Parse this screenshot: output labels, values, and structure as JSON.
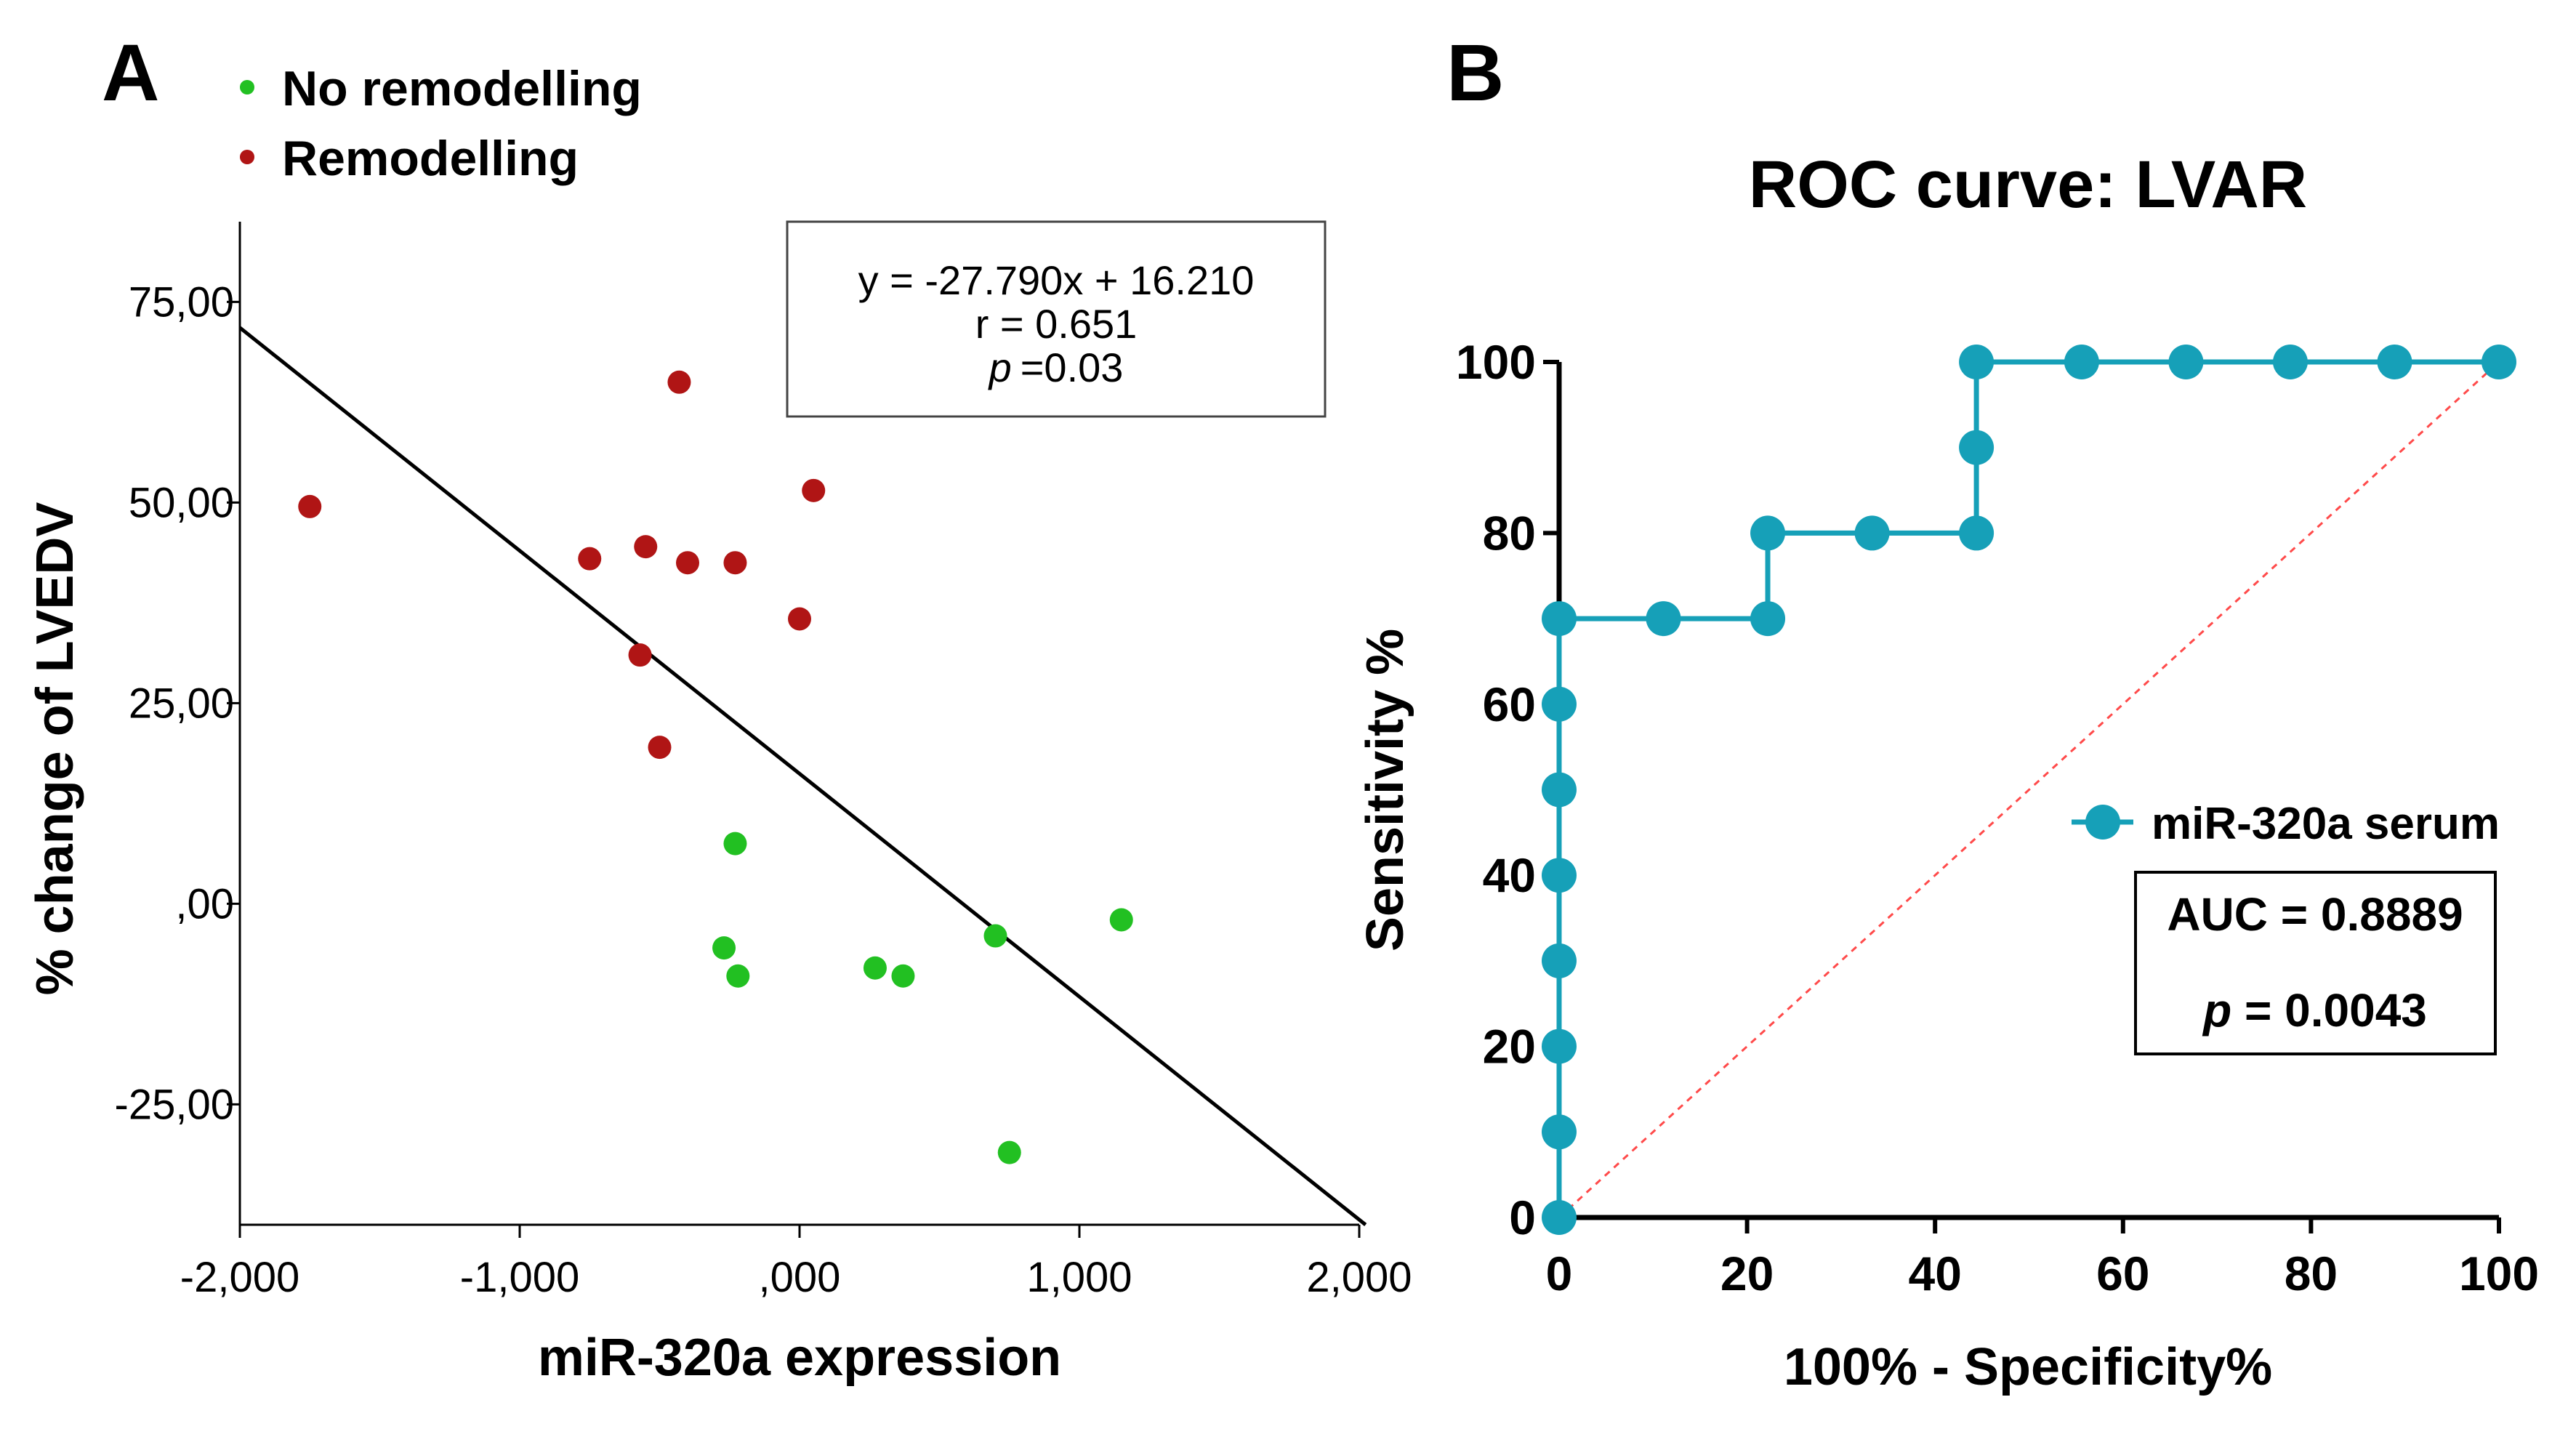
{
  "panels": {
    "a": {
      "letter": "A"
    },
    "b": {
      "letter": "B"
    }
  },
  "chart_data": [
    {
      "type": "scatter",
      "title": "",
      "xlabel": "miR-320a expression",
      "ylabel": "% change of LVEDV",
      "xlim": [
        -2.0,
        2.0
      ],
      "ylim": [
        -40,
        85
      ],
      "xticks": [
        -2,
        -1,
        0,
        1,
        2
      ],
      "xtick_labels": [
        "-2,000",
        "-1,000",
        ",000",
        "1,000",
        "2,000"
      ],
      "yticks": [
        -25,
        0,
        25,
        50,
        75
      ],
      "ytick_labels": [
        "-25,00",
        ",00",
        "25,00",
        "50,00",
        "75,00"
      ],
      "grid": false,
      "legend_position": "top-left",
      "series": [
        {
          "name": "No remodelling",
          "color": "#22c022",
          "points": [
            {
              "x": -0.23,
              "y": 7.5
            },
            {
              "x": -0.27,
              "y": -5.5
            },
            {
              "x": -0.22,
              "y": -9
            },
            {
              "x": 0.27,
              "y": -8
            },
            {
              "x": 0.37,
              "y": -9
            },
            {
              "x": 0.7,
              "y": -4
            },
            {
              "x": 1.15,
              "y": -2
            },
            {
              "x": 0.75,
              "y": -31
            }
          ]
        },
        {
          "name": "Remodelling",
          "color": "#b01515",
          "points": [
            {
              "x": -1.75,
              "y": 49.5
            },
            {
              "x": -0.75,
              "y": 43
            },
            {
              "x": -0.55,
              "y": 44.5
            },
            {
              "x": -0.4,
              "y": 42.5
            },
            {
              "x": -0.23,
              "y": 42.5
            },
            {
              "x": -0.43,
              "y": 65
            },
            {
              "x": 0.05,
              "y": 51.5
            },
            {
              "x": 0.0,
              "y": 35.5
            },
            {
              "x": -0.57,
              "y": 31
            },
            {
              "x": -0.5,
              "y": 19.5
            }
          ]
        }
      ],
      "fit_line": {
        "slope": -27.79,
        "intercept": 16.21,
        "color": "#000000"
      },
      "annotation": {
        "equation": "y = -27.790x + 16.210",
        "r_text": "r = 0.651",
        "p_symbol": "p",
        "p_value": "=0.03"
      }
    },
    {
      "type": "line",
      "title": "ROC curve: LVAR",
      "xlabel": "100% - Specificity%",
      "ylabel": "Sensitivity %",
      "xlim": [
        0,
        100
      ],
      "ylim": [
        0,
        100
      ],
      "xticks": [
        0,
        20,
        40,
        60,
        80,
        100
      ],
      "xtick_labels": [
        "0",
        "20",
        "40",
        "60",
        "80",
        "100"
      ],
      "yticks": [
        0,
        20,
        40,
        60,
        80,
        100
      ],
      "ytick_labels": [
        "0",
        "20",
        "40",
        "60",
        "80",
        "100"
      ],
      "grid": false,
      "legend_position": "right",
      "series": [
        {
          "name": "miR-320a serum",
          "color": "#16a0b8",
          "x": [
            0,
            0,
            0,
            0,
            0,
            0,
            0,
            0,
            11.1,
            22.2,
            22.2,
            33.3,
            44.4,
            44.4,
            44.4,
            55.6,
            66.7,
            77.8,
            88.9,
            100
          ],
          "y": [
            0,
            10,
            20,
            30,
            40,
            50,
            60,
            70,
            70,
            70,
            80,
            80,
            80,
            90,
            100,
            100,
            100,
            100,
            100,
            100
          ]
        }
      ],
      "reference_line": {
        "x": [
          0,
          100
        ],
        "y": [
          0,
          100
        ],
        "color": "#ff4a4a"
      },
      "auc_text": "AUC = 0.8889",
      "p_symbol": "p",
      "p_value": " = 0.0043"
    }
  ]
}
